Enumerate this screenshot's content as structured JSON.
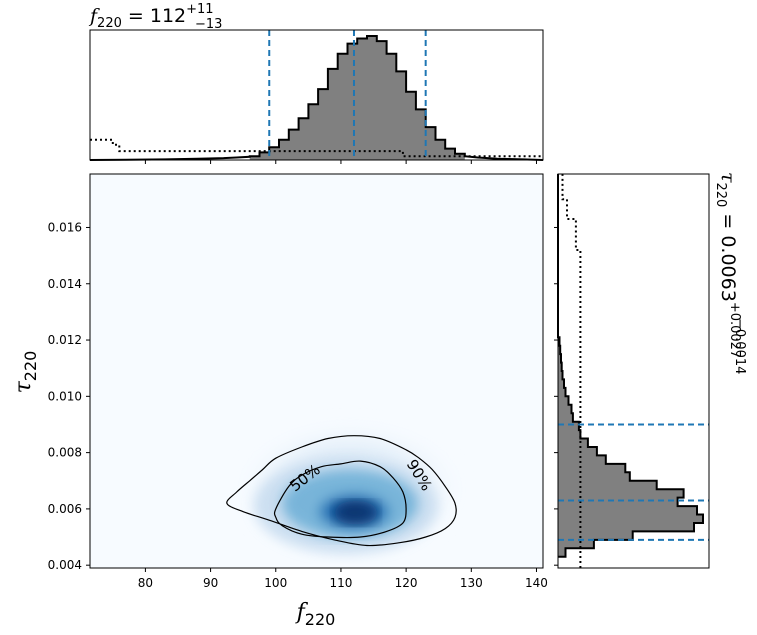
{
  "chart_data": [
    {
      "type": "heatmap",
      "xlabel": "f",
      "xlabel_sub": "220",
      "ylabel": "τ",
      "ylabel_sub": "220",
      "xlim": [
        71.5,
        141
      ],
      "ylim": [
        0.0039,
        0.0179
      ],
      "xticks": [
        80,
        90,
        100,
        110,
        120,
        130,
        140
      ],
      "yticks": [
        0.004,
        0.006,
        0.008,
        0.01,
        0.012,
        0.014,
        0.016
      ],
      "ytick_labels": [
        "0.004",
        "0.006",
        "0.008",
        "0.010",
        "0.012",
        "0.014",
        "0.016"
      ],
      "colormap": "Blues",
      "density_peak": {
        "x": 112,
        "y": 0.0059
      },
      "contours": [
        {
          "label": "50%",
          "level": 0.5,
          "points": [
            [
              100,
              0.006
            ],
            [
              102,
              0.0068
            ],
            [
              104,
              0.0072
            ],
            [
              107,
              0.0075
            ],
            [
              110,
              0.0076
            ],
            [
              113,
              0.0077
            ],
            [
              116,
              0.0075
            ],
            [
              118,
              0.0071
            ],
            [
              119.5,
              0.0066
            ],
            [
              120,
              0.006
            ],
            [
              119.5,
              0.0055
            ],
            [
              117,
              0.0052
            ],
            [
              113,
              0.005
            ],
            [
              108,
              0.005
            ],
            [
              104,
              0.0051
            ],
            [
              101,
              0.0054
            ],
            [
              100,
              0.0057
            ]
          ]
        },
        {
          "label": "90%",
          "level": 0.9,
          "points": [
            [
              92.5,
              0.0062
            ],
            [
              94,
              0.0066
            ],
            [
              96,
              0.007
            ],
            [
              98,
              0.0074
            ],
            [
              100,
              0.0078
            ],
            [
              104,
              0.0082
            ],
            [
              108,
              0.0085
            ],
            [
              112,
              0.0086
            ],
            [
              116,
              0.0085
            ],
            [
              120,
              0.0081
            ],
            [
              122,
              0.0078
            ],
            [
              124,
              0.0074
            ],
            [
              126,
              0.0068
            ],
            [
              127.5,
              0.0062
            ],
            [
              127.5,
              0.0057
            ],
            [
              126,
              0.0053
            ],
            [
              123,
              0.005
            ],
            [
              119,
              0.0048
            ],
            [
              114,
              0.0047
            ],
            [
              109,
              0.0049
            ],
            [
              104,
              0.0052
            ],
            [
              99,
              0.0056
            ],
            [
              95,
              0.0059
            ]
          ]
        }
      ]
    },
    {
      "type": "bar",
      "title_text": "f",
      "title_sub": "220",
      "title_value": " = 112",
      "title_sup": "+11",
      "title_inf": "−13",
      "xlim": [
        71.5,
        141
      ],
      "bin_edges": [
        96,
        97.5,
        99,
        100.5,
        102,
        103.5,
        105,
        106.5,
        108,
        109.5,
        111,
        112.5,
        114,
        115.5,
        117,
        118.5,
        120,
        121.5,
        123,
        124.5,
        126,
        127.5,
        129
      ],
      "counts": [
        0.03,
        0.06,
        0.1,
        0.16,
        0.24,
        0.33,
        0.44,
        0.56,
        0.72,
        0.84,
        0.92,
        0.96,
        0.98,
        0.94,
        0.84,
        0.7,
        0.54,
        0.4,
        0.26,
        0.16,
        0.09,
        0.05
      ],
      "tail_left": [
        [
          83,
          0.005
        ],
        [
          88,
          0.01
        ],
        [
          92,
          0.015
        ],
        [
          94,
          0.02
        ],
        [
          96,
          0.025
        ]
      ],
      "tail_right": [
        [
          129,
          0.03
        ],
        [
          131,
          0.02
        ],
        [
          134,
          0.01
        ],
        [
          138,
          0.005
        ]
      ],
      "prior": [
        [
          71.5,
          0.16
        ],
        [
          75,
          0.16
        ],
        [
          75,
          0.12
        ],
        [
          76,
          0.12
        ],
        [
          76,
          0.07
        ],
        [
          119.5,
          0.07
        ],
        [
          119.5,
          0.03
        ],
        [
          141,
          0.03
        ]
      ],
      "quantiles": [
        99,
        112,
        123
      ],
      "quantile_color": "#1f77b4",
      "fill_color": "#808080"
    },
    {
      "type": "bar",
      "orientation": "horizontal",
      "title_text": "τ",
      "title_sub": "220",
      "title_value": " = 0.0063",
      "title_sup": "+0.0027",
      "title_inf": "−0.0014",
      "ylim": [
        0.0039,
        0.0179
      ],
      "bin_edges": [
        0.0043,
        0.0046,
        0.0049,
        0.0052,
        0.0055,
        0.0058,
        0.0061,
        0.0064,
        0.0067,
        0.007,
        0.0073,
        0.0076,
        0.0079,
        0.0082,
        0.0085,
        0.0088,
        0.0091,
        0.0094,
        0.0097,
        0.01,
        0.0103,
        0.0106,
        0.0109,
        0.0112,
        0.0115,
        0.0118,
        0.0121
      ],
      "counts": [
        0.05,
        0.24,
        0.5,
        0.91,
        0.97,
        0.93,
        0.8,
        0.84,
        0.66,
        0.48,
        0.45,
        0.32,
        0.26,
        0.2,
        0.15,
        0.14,
        0.1,
        0.09,
        0.07,
        0.05,
        0.04,
        0.03,
        0.025,
        0.02,
        0.015,
        0.01
      ],
      "prior": [
        [
          0.0039,
          0.15
        ],
        [
          0.0152,
          0.15
        ],
        [
          0.0152,
          0.12
        ],
        [
          0.0163,
          0.12
        ],
        [
          0.0163,
          0.06
        ],
        [
          0.017,
          0.06
        ],
        [
          0.017,
          0.03
        ],
        [
          0.0179,
          0.03
        ]
      ],
      "quantiles": [
        0.0049,
        0.0063,
        0.009
      ],
      "quantile_color": "#1f77b4",
      "fill_color": "#808080"
    }
  ]
}
